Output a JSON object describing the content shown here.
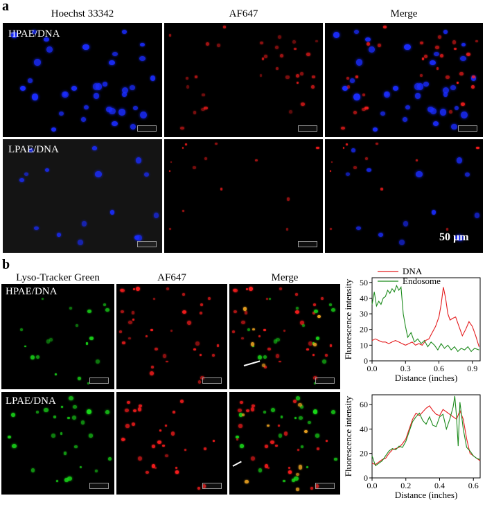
{
  "panel_a": {
    "letter": "a",
    "columns": [
      "Hoechst 33342",
      "AF647",
      "Merge"
    ],
    "rows": [
      "HPAE/DNA",
      "LPAE/DNA"
    ],
    "scale_label": "50 µm"
  },
  "panel_b": {
    "letter": "b",
    "columns": [
      "Lyso-Tracker Green",
      "AF647",
      "Merge"
    ],
    "rows": [
      "HPAE/DNA",
      "LPAE/DNA"
    ]
  },
  "colors": {
    "nucleus": "#1a2cff",
    "af647": "#ff1e1e",
    "lyso": "#19d619",
    "overlap": "#e8a020",
    "dna_line": "#e41a1c",
    "endosome_line": "#1b8a1b"
  },
  "chart_data": [
    {
      "type": "line",
      "title": "",
      "xlabel": "Distance (inches)",
      "ylabel": "Fluorescence intensity",
      "xlim": [
        0,
        0.97
      ],
      "ylim": [
        0,
        53
      ],
      "xticks": [
        0.0,
        0.3,
        0.6,
        0.9
      ],
      "yticks": [
        0,
        10,
        20,
        30,
        40,
        50
      ],
      "legend": "top-right",
      "grid": false,
      "series": [
        {
          "name": "DNA",
          "color": "#e41a1c",
          "x": [
            0.0,
            0.03,
            0.06,
            0.09,
            0.12,
            0.15,
            0.18,
            0.21,
            0.24,
            0.27,
            0.3,
            0.33,
            0.36,
            0.39,
            0.42,
            0.45,
            0.48,
            0.51,
            0.54,
            0.57,
            0.6,
            0.62,
            0.64,
            0.66,
            0.68,
            0.7,
            0.72,
            0.75,
            0.78,
            0.81,
            0.84,
            0.87,
            0.9,
            0.93,
            0.96
          ],
          "y": [
            13,
            14,
            13,
            12,
            12,
            11,
            12,
            13,
            12,
            11,
            10,
            11,
            12,
            10,
            11,
            10,
            13,
            14,
            18,
            22,
            28,
            36,
            47,
            40,
            30,
            26,
            27,
            28,
            22,
            16,
            20,
            25,
            22,
            16,
            9
          ]
        },
        {
          "name": "Endosome",
          "color": "#1b8a1b",
          "x": [
            0.0,
            0.02,
            0.04,
            0.06,
            0.08,
            0.1,
            0.12,
            0.14,
            0.16,
            0.18,
            0.2,
            0.22,
            0.24,
            0.26,
            0.28,
            0.3,
            0.32,
            0.35,
            0.38,
            0.41,
            0.44,
            0.47,
            0.5,
            0.53,
            0.56,
            0.59,
            0.62,
            0.65,
            0.68,
            0.71,
            0.74,
            0.77,
            0.8,
            0.83,
            0.86,
            0.89,
            0.92,
            0.96
          ],
          "y": [
            36,
            44,
            35,
            38,
            36,
            40,
            41,
            45,
            43,
            46,
            44,
            48,
            45,
            47,
            30,
            22,
            15,
            18,
            12,
            14,
            11,
            13,
            9,
            12,
            10,
            7,
            11,
            8,
            10,
            7,
            9,
            6,
            8,
            7,
            9,
            6,
            8,
            7
          ]
        }
      ]
    },
    {
      "type": "line",
      "title": "",
      "xlabel": "Distance (inches)",
      "ylabel": "Fluorescence intensity",
      "xlim": [
        0,
        0.64
      ],
      "ylim": [
        0,
        68
      ],
      "xticks": [
        0.0,
        0.2,
        0.4,
        0.6
      ],
      "yticks": [
        0,
        20,
        40,
        60
      ],
      "grid": false,
      "series": [
        {
          "color": "#e41a1c",
          "x": [
            0.0,
            0.02,
            0.04,
            0.06,
            0.08,
            0.1,
            0.12,
            0.14,
            0.16,
            0.18,
            0.2,
            0.22,
            0.24,
            0.26,
            0.28,
            0.3,
            0.32,
            0.34,
            0.36,
            0.38,
            0.4,
            0.42,
            0.44,
            0.46,
            0.48,
            0.5,
            0.52,
            0.54,
            0.56,
            0.58,
            0.6,
            0.62,
            0.64
          ],
          "y": [
            12,
            11,
            13,
            15,
            16,
            20,
            23,
            24,
            25,
            28,
            32,
            40,
            48,
            53,
            51,
            54,
            57,
            59,
            55,
            52,
            51,
            56,
            54,
            52,
            50,
            48,
            55,
            48,
            32,
            20,
            18,
            16,
            14
          ]
        },
        {
          "color": "#1b8a1b",
          "x": [
            0.0,
            0.02,
            0.04,
            0.06,
            0.08,
            0.1,
            0.12,
            0.14,
            0.16,
            0.18,
            0.2,
            0.22,
            0.24,
            0.26,
            0.28,
            0.3,
            0.32,
            0.34,
            0.36,
            0.38,
            0.4,
            0.42,
            0.44,
            0.46,
            0.48,
            0.49,
            0.5,
            0.51,
            0.52,
            0.54,
            0.56,
            0.58,
            0.6,
            0.62,
            0.64
          ],
          "y": [
            18,
            10,
            12,
            14,
            18,
            22,
            24,
            23,
            26,
            25,
            30,
            38,
            46,
            50,
            53,
            47,
            44,
            50,
            43,
            42,
            50,
            52,
            40,
            48,
            58,
            67,
            50,
            26,
            62,
            40,
            25,
            22,
            18,
            16,
            15
          ]
        }
      ]
    }
  ]
}
